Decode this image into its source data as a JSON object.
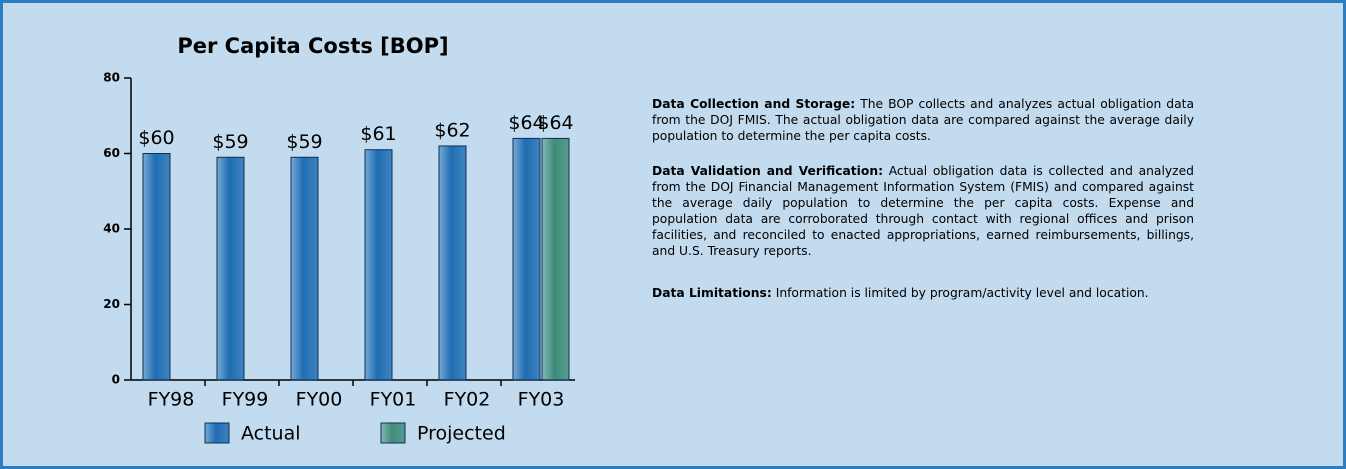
{
  "chart_data": {
    "type": "bar",
    "title": "Per Capita Costs [BOP]",
    "categories": [
      "FY98",
      "FY99",
      "FY00",
      "FY01",
      "FY02",
      "FY03"
    ],
    "series": [
      {
        "name": "Actual",
        "color": "#1f6db3",
        "values": [
          60,
          59,
          59,
          61,
          62,
          64
        ],
        "value_labels": [
          "$60",
          "$59",
          "$59",
          "$61",
          "$62",
          "$64"
        ]
      },
      {
        "name": "Projected",
        "color": "#3e8c78",
        "values": [
          null,
          null,
          null,
          null,
          null,
          64
        ],
        "value_labels": [
          null,
          null,
          null,
          null,
          null,
          "$64"
        ]
      }
    ],
    "ylim": [
      0,
      80
    ],
    "yticks": [
      0,
      20,
      40,
      60,
      80
    ],
    "legend": "bottom"
  },
  "notes": [
    {
      "heading": "Data Collection and Storage:",
      "text": "The BOP collects and analyzes actual obligation data from the DOJ FMIS.  The actual obligation data are compared against the average daily population to determine the per capita costs."
    },
    {
      "heading": "Data Validation and Verification:",
      "text": "Actual obligation data is collected and analyzed from the DOJ Financial Management Information System (FMIS) and compared against the average daily population to determine the per capita costs.  Expense and population data are corroborated through contact with regional offices and prison facilities, and reconciled to enacted appropriations, earned reimbursements, billings, and U.S. Treasury reports."
    },
    {
      "heading": "Data Limitations:",
      "text": "Information is limited by program/activity level and location."
    }
  ]
}
